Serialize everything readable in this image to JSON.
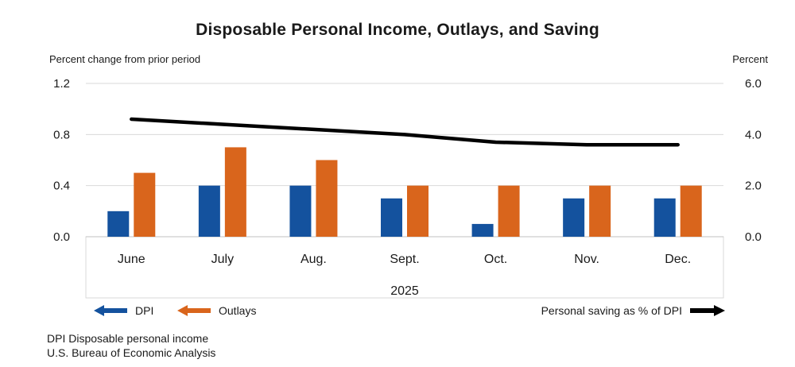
{
  "title": "Disposable Personal Income, Outlays, and Saving",
  "chart_data": {
    "type": "combo-bar-line",
    "categories": [
      "June",
      "July",
      "Aug.",
      "Sept.",
      "Oct.",
      "Nov.",
      "Dec."
    ],
    "year_label": "2025",
    "series": [
      {
        "name": "DPI",
        "type": "bar",
        "axis": "left",
        "color": "#14529E",
        "values": [
          0.2,
          0.4,
          0.4,
          0.3,
          0.1,
          0.3,
          0.3
        ]
      },
      {
        "name": "Outlays",
        "type": "bar",
        "axis": "left",
        "color": "#D9651C",
        "values": [
          0.5,
          0.7,
          0.6,
          0.4,
          0.4,
          0.4,
          0.4
        ]
      },
      {
        "name": "Personal saving as % of DPI",
        "type": "line",
        "axis": "right",
        "color": "#000000",
        "values": [
          4.6,
          4.4,
          4.2,
          4.0,
          3.7,
          3.6,
          3.6
        ]
      }
    ],
    "left_axis": {
      "label": "Percent change from prior period",
      "range": [
        0,
        1.2
      ],
      "ticks": [
        {
          "v": 0.0,
          "label": "0.0"
        },
        {
          "v": 0.4,
          "label": "0.4"
        },
        {
          "v": 0.8,
          "label": "0.8"
        },
        {
          "v": 1.2,
          "label": "1.2"
        }
      ]
    },
    "right_axis": {
      "label": "Percent",
      "range": [
        0,
        6.0
      ],
      "ticks": [
        {
          "v": 0.0,
          "label": "0.0"
        },
        {
          "v": 2.0,
          "label": "2.0"
        },
        {
          "v": 4.0,
          "label": "4.0"
        },
        {
          "v": 6.0,
          "label": "6.0"
        }
      ]
    },
    "grid": true,
    "legend_position": "bottom"
  },
  "legend": {
    "dpi_label": "DPI",
    "outlays_label": "Outlays",
    "saving_label": "Personal saving as % of DPI"
  },
  "footnotes": [
    "DPI Disposable personal income",
    "U.S. Bureau of Economic Analysis"
  ],
  "colors": {
    "dpi": "#14529E",
    "outlays": "#D9651C",
    "saving_line": "#000000",
    "grid": "#D9D9D9",
    "axis_line": "#C0C0C0",
    "text": "#1a1a1a"
  }
}
